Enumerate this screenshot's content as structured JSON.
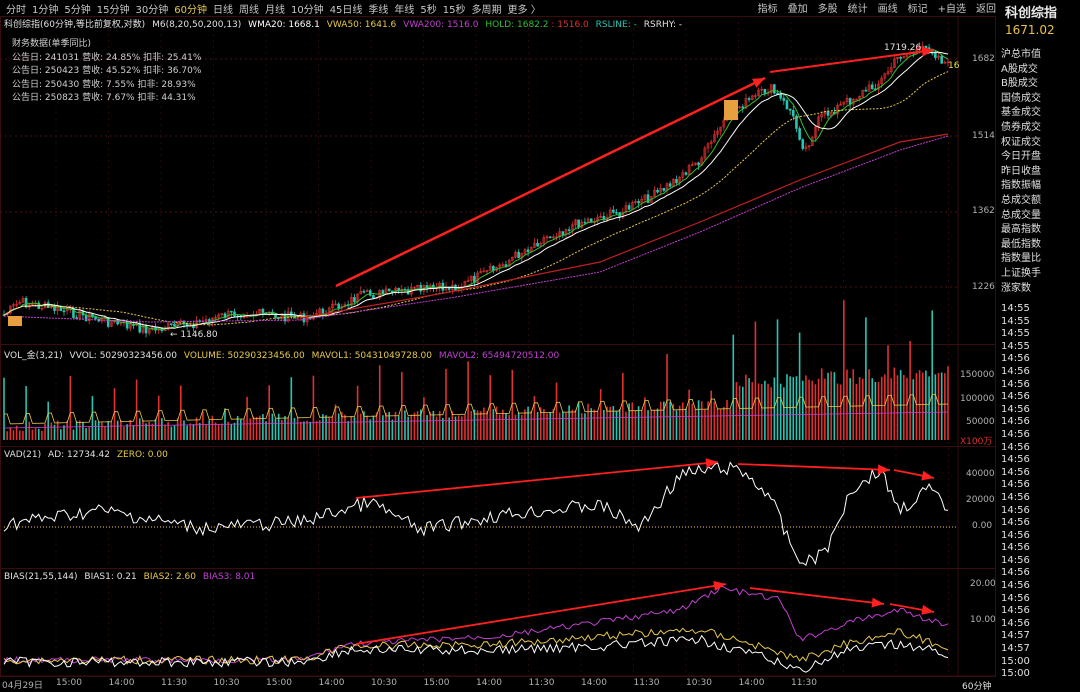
{
  "toolbar": {
    "periods": [
      "分时",
      "1分钟",
      "5分钟",
      "15分钟",
      "30分钟",
      "60分钟",
      "日线",
      "周线",
      "月线",
      "10分钟",
      "45日线",
      "季线",
      "年线",
      "5秒",
      "15秒",
      "多周期",
      "更多 〉"
    ],
    "active_period": "60分钟",
    "right_tools": [
      "指标",
      "叠加",
      "多股",
      "统计",
      "画线",
      "标记",
      "+自选",
      "返回"
    ]
  },
  "main_info": {
    "title": "科创综指(60分钟,等比前复权,对数)",
    "indicator": "M6(8,20,50,200,13)",
    "wma20": "WMA20: 1668.1",
    "vwa50": "VWA50: 1641.6",
    "vwa200": "VWA200: 1516.0",
    "hold": "HOLD: 1682.2",
    "hold2": ": 1516.0",
    "rsline": "RSLINE: -",
    "rsrhy": "RSRHY: -"
  },
  "financials": {
    "header": "财务数据(单季同比)",
    "rows": [
      "公告日: 241031  营收: 24.85%  扣非: 25.41%",
      "公告日: 250423  营收: 45.52%  扣非: 36.70%",
      "公告日: 250430  营收: 7.55%  扣非: 28.93%",
      "公告日: 250823  营收: 7.67%  扣非: 44.31%"
    ]
  },
  "main_annotations": {
    "high_label": "1719.26",
    "low_label": "← 1146.80",
    "right_label": "16"
  },
  "main_yaxis": [
    "1682",
    "1514",
    "1362",
    "1226"
  ],
  "vol_info": {
    "title": "VOL_金(3,21)",
    "vvol": "VVOL: 50290323456.00",
    "volume": "VOLUME: 50290323456.00",
    "mavol1": "MAVOL1: 50431049728.00",
    "mavol2": "MAVOL2: 65494720512.00"
  },
  "vol_yaxis": [
    "150000",
    "100000",
    "50000",
    "X100万"
  ],
  "vad_info": {
    "title": "VAD(21)",
    "ad": "AD: 12734.42",
    "zero": "ZERO: 0.00"
  },
  "vad_yaxis": [
    "40000",
    "20000",
    "0.00"
  ],
  "bias_info": {
    "title": "BIAS(21,55,144)",
    "bias1": "BIAS1: 0.21",
    "bias2": "BIAS2: 2.60",
    "bias3": "BIAS3: 8.01"
  },
  "bias_yaxis": [
    "20.00",
    "10.00"
  ],
  "xaxis": {
    "labels": [
      "04月29日",
      "15:00",
      "14:00",
      "11:30",
      "10:30",
      "15:00",
      "14:00",
      "10:30",
      "15:00",
      "14:00",
      "11:30",
      "14:00",
      "11:30",
      "10:30",
      "14:00",
      "11:30"
    ],
    "period_label": "60分钟"
  },
  "right_panel": {
    "title": "科创综指",
    "price": "1671.02",
    "items": [
      "沪总市值",
      "A股成交",
      "B股成交",
      "国债成交",
      "基金成交",
      "债券成交",
      "权证成交",
      "今日开盘",
      "昨日收盘",
      "指数振幅",
      "总成交额",
      "总成交量",
      "最高指数",
      "最低指数",
      "指数量比",
      "上证换手",
      "涨家数"
    ],
    "times": [
      "14:55",
      "14:55",
      "14:55",
      "14:55",
      "14:56",
      "14:56",
      "14:56",
      "14:56",
      "14:56",
      "14:56",
      "14:56",
      "14:56",
      "14:56",
      "14:56",
      "14:56",
      "14:56",
      "14:56",
      "14:56",
      "14:56",
      "14:56",
      "14:56",
      "14:56",
      "14:56",
      "14:56",
      "14:56",
      "14:56",
      "14:57",
      "14:57",
      "15:00",
      "15:00"
    ]
  },
  "colors": {
    "bg": "#000000",
    "up": "#e03030",
    "down": "#26c6b4",
    "wma": "#ffffff",
    "vwa50": "#e6c84c",
    "vwa200": "#c040d0",
    "hold": "#30c030",
    "red_trend": "#ff2020",
    "grid": "#5a1a1a"
  },
  "chart_data": [
    {
      "type": "line",
      "name": "main_price",
      "title": "科创综指(60分钟,等比前复权,对数)",
      "ylim": [
        1146.8,
        1719.26
      ],
      "y_ticks": [
        1682,
        1514,
        1362,
        1226
      ],
      "series": [
        {
          "name": "WMA20",
          "values": []
        },
        {
          "name": "VWA50",
          "values": []
        },
        {
          "name": "VWA200",
          "values": []
        }
      ],
      "annotations": [
        {
          "text": "1719.26",
          "kind": "high"
        },
        {
          "text": "1146.80",
          "kind": "low"
        }
      ]
    },
    {
      "type": "bar",
      "name": "volume",
      "ylim": [
        0,
        150000
      ],
      "y_ticks": [
        150000,
        100000,
        50000
      ],
      "values": []
    },
    {
      "type": "line",
      "name": "VAD",
      "ylim": [
        -20000,
        45000
      ],
      "y_ticks": [
        40000,
        20000,
        0
      ],
      "values": []
    },
    {
      "type": "line",
      "name": "BIAS",
      "ylim": [
        -2,
        22
      ],
      "y_ticks": [
        20,
        10
      ],
      "series": [
        {
          "name": "BIAS1",
          "values": []
        },
        {
          "name": "BIAS2",
          "values": []
        },
        {
          "name": "BIAS3",
          "values": []
        }
      ]
    }
  ]
}
